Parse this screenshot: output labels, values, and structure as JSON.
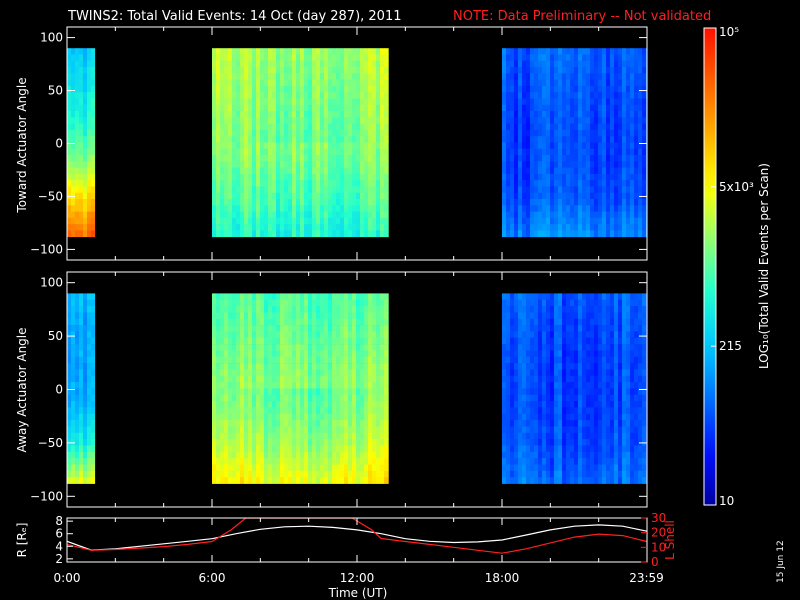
{
  "header": {
    "title": "TWINS2: Total Valid Events: 14 Oct (day 287), 2011",
    "note": "NOTE: Data Preliminary -- Not validated"
  },
  "colorbar": {
    "label": "LOG₁₀(Total Valid Events per Scan)",
    "ticks": [
      {
        "label": "10",
        "frac": 0.0
      },
      {
        "label": "215",
        "frac": 0.333
      },
      {
        "label": "5x10³",
        "frac": 0.667
      },
      {
        "label": "10⁵",
        "frac": 1.0
      }
    ],
    "colors": [
      "#0000a0",
      "#0010ff",
      "#0070ff",
      "#00c8ff",
      "#20ffd0",
      "#90ff70",
      "#ffff00",
      "#ffb000",
      "#ff6000",
      "#ff1000"
    ]
  },
  "stamp": "15 Jun 12",
  "chart_data": [
    {
      "type": "heatmap",
      "name": "toward",
      "ylabel": "Toward Actuator Angle",
      "yticks": [
        -100,
        -50,
        0,
        50,
        100
      ],
      "ylim": [
        -110,
        110
      ],
      "xlim": [
        0,
        24
      ],
      "data_ylim": [
        -88,
        90
      ],
      "blocks": [
        {
          "t0": 0.0,
          "t1": 1.15,
          "level": [
            0.35,
            0.4,
            0.45,
            0.55,
            0.72,
            0.88
          ],
          "note_y": "low angles brighter"
        },
        {
          "t0": 6.0,
          "t1": 13.3,
          "level": [
            0.62,
            0.6,
            0.58,
            0.55,
            0.5,
            0.45
          ]
        },
        {
          "t0": 18.0,
          "t1": 24.0,
          "level": [
            0.2,
            0.18,
            0.17,
            0.17,
            0.18,
            0.25
          ]
        }
      ]
    },
    {
      "type": "heatmap",
      "name": "away",
      "ylabel": "Away Actuator Angle",
      "yticks": [
        -100,
        -50,
        0,
        50,
        100
      ],
      "ylim": [
        -110,
        110
      ],
      "xlim": [
        0,
        24
      ],
      "data_ylim": [
        -88,
        90
      ],
      "blocks": [
        {
          "t0": 0.0,
          "t1": 1.15,
          "level": [
            0.3,
            0.28,
            0.28,
            0.3,
            0.4,
            0.62
          ]
        },
        {
          "t0": 6.0,
          "t1": 13.3,
          "level": [
            0.5,
            0.52,
            0.55,
            0.57,
            0.62,
            0.7
          ]
        },
        {
          "t0": 18.0,
          "t1": 24.0,
          "level": [
            0.2,
            0.18,
            0.17,
            0.17,
            0.18,
            0.22
          ]
        }
      ]
    },
    {
      "type": "line",
      "name": "orbit",
      "ylabel_left": "R [Rₑ]",
      "ylabel_right": "L Shell",
      "yticks_left": [
        2,
        4,
        6,
        8
      ],
      "ylim_left": [
        1.5,
        8.5
      ],
      "yticks_right": [
        0,
        10,
        20,
        30
      ],
      "ylim_right": [
        0,
        30
      ],
      "xlabel": "Time (UT)",
      "xticks": [
        "0:00",
        "6:00",
        "12:00",
        "18:00",
        "23:59"
      ],
      "xticks_val": [
        0,
        6,
        12,
        18,
        23.98
      ],
      "series": [
        {
          "axis": "left",
          "color": "#ffffff",
          "x": [
            0,
            1,
            2,
            3,
            4,
            5,
            6,
            7,
            8,
            9,
            10,
            11,
            12,
            13,
            14,
            15,
            16,
            17,
            18,
            19,
            20,
            21,
            22,
            23,
            24
          ],
          "y": [
            4.8,
            3.4,
            3.6,
            4.0,
            4.4,
            4.8,
            5.2,
            6.0,
            6.7,
            7.1,
            7.2,
            7.0,
            6.6,
            6.0,
            5.2,
            4.8,
            4.6,
            4.7,
            5.0,
            5.8,
            6.6,
            7.2,
            7.4,
            7.2,
            6.4
          ]
        },
        {
          "axis": "right",
          "color": "#ff2020",
          "x": [
            0,
            1,
            2,
            3,
            4,
            5,
            6,
            6.8,
            7.4,
            11.8,
            12.6,
            13,
            14,
            15,
            16,
            17,
            18,
            19,
            20,
            21,
            22,
            23,
            24
          ],
          "y": [
            12,
            8,
            8.5,
            9.5,
            10.5,
            12,
            14,
            22,
            30,
            30,
            22,
            16,
            14,
            12,
            10,
            8,
            6,
            9,
            13,
            17,
            19,
            18,
            14
          ]
        }
      ]
    }
  ]
}
